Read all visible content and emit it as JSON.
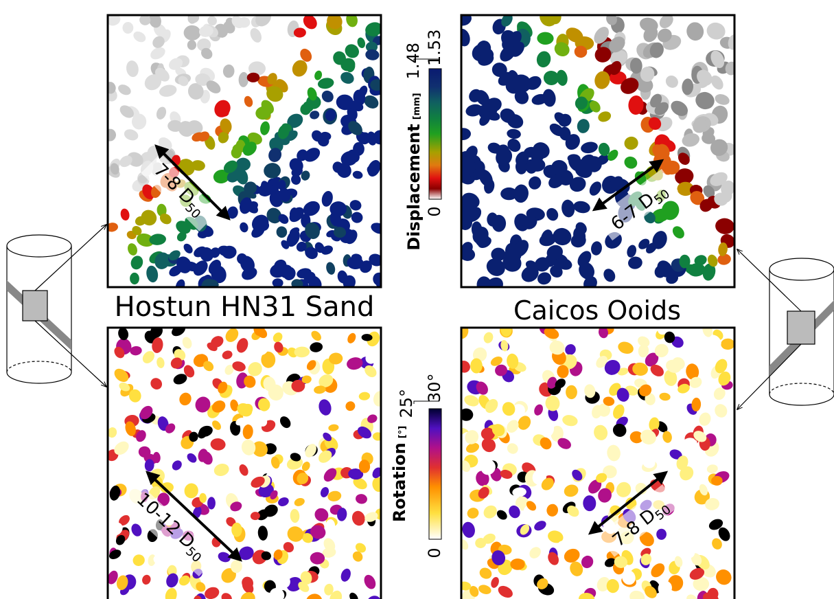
{
  "panels": {
    "top_left": {
      "label": {
        "text": "7-8 D",
        "subscript": "50"
      }
    },
    "top_right": {
      "label": {
        "text": "6-7 D",
        "subscript": "50"
      }
    },
    "bottom_left": {
      "label": {
        "text": "10-12 D",
        "subscript": "50"
      }
    },
    "bottom_right": {
      "label": {
        "text": "7-8 D",
        "subscript": "50"
      }
    }
  },
  "titles": {
    "left": "Hostun HN31 Sand",
    "right": "Caicos Ooids"
  },
  "colorbars": {
    "displacement": {
      "title": "Displacement",
      "unit": "[mm]",
      "min": "0",
      "max_left": "1.48",
      "max_right": "1.53"
    },
    "rotation": {
      "title": "Rotation",
      "unit": "[°]",
      "min": "0",
      "max_left": "25°",
      "max_right": "30°"
    }
  }
}
